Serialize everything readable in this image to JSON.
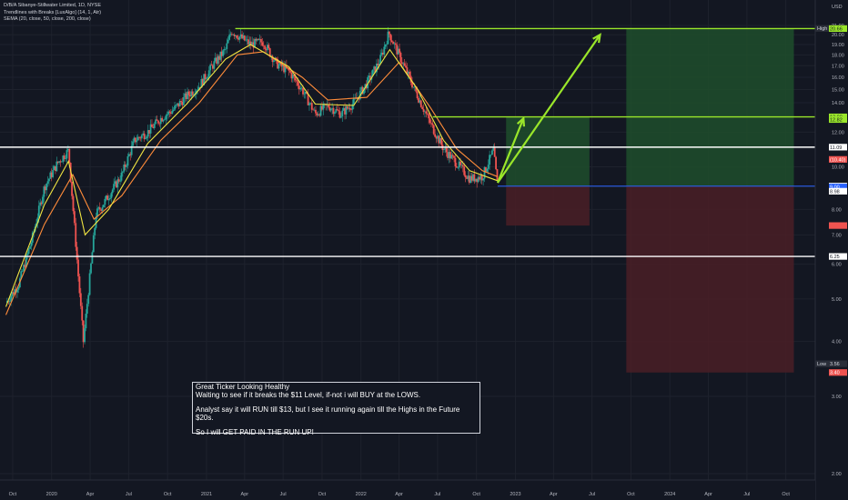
{
  "header": {
    "title_line": "D/B/A Sibanye-Stillwater Limited, 1D, NYSE",
    "indicator_1": "Trendlines with Breaks [LuxAlgo] (14, 1, Atr)",
    "indicator_2": "SEMA (20, close, 50, close, 200, close)"
  },
  "note": {
    "line1": "Great Ticker Looking Healthy",
    "line2": "Waiting to see if it breaks the $11 Level, if-not i will BUY at the LOWS.",
    "line3": "Analyst say it will RUN till $13, but I see it running again till the Highs in the Future $20s.",
    "line4": "So I will GET PAID IN THE RUN UP!"
  },
  "colors": {
    "background": "#131722",
    "candle_up": "#26a69a",
    "candle_down": "#ef5350",
    "ema_fast": "#f0e442",
    "ema_mid": "#ff8c3a",
    "level_white": "#ffffff",
    "level_green": "#9ae62a",
    "entry_blue": "#2962ff",
    "profit_zone": "#1e4d2b",
    "loss_zone": "#4a1f26"
  },
  "chart_data": {
    "type": "line",
    "title": "D/B/A Sibanye-Stillwater Limited, 1D, NYSE",
    "currency": "USD",
    "y_scale": "log",
    "ylim": [
      1.8,
      22.5
    ],
    "y_ticks": [
      "21.00",
      "20.00",
      "19.00",
      "18.00",
      "17.00",
      "16.00",
      "15.00",
      "14.00",
      "13.00",
      "12.00",
      "11.00",
      "10.00",
      "9.00",
      "8.00",
      "7.00",
      "6.00",
      "5.00",
      "4.00",
      "3.00",
      "2.00"
    ],
    "x_ticks": [
      "Oct",
      "2020",
      "Apr",
      "Jul",
      "Oct",
      "2021",
      "Apr",
      "Jul",
      "Oct",
      "2022",
      "Apr",
      "Jul",
      "Oct",
      "2023",
      "Apr",
      "Jul",
      "Oct",
      "2024",
      "Apr",
      "Jul",
      "Oct"
    ],
    "price_series": {
      "name": "Close",
      "points": [
        [
          "2019-09-15",
          4.9
        ],
        [
          "2019-10-15",
          5.4
        ],
        [
          "2019-11-15",
          6.8
        ],
        [
          "2019-12-15",
          9.0
        ],
        [
          "2020-01-15",
          10.2
        ],
        [
          "2020-02-10",
          10.9
        ],
        [
          "2020-03-16",
          4.0
        ],
        [
          "2020-04-15",
          7.8
        ],
        [
          "2020-05-15",
          8.6
        ],
        [
          "2020-06-15",
          9.6
        ],
        [
          "2020-07-15",
          11.5
        ],
        [
          "2020-08-15",
          12.0
        ],
        [
          "2020-09-15",
          12.9
        ],
        [
          "2020-10-15",
          13.5
        ],
        [
          "2020-11-15",
          14.5
        ],
        [
          "2020-12-15",
          15.3
        ],
        [
          "2021-01-15",
          17.0
        ],
        [
          "2021-02-15",
          18.5
        ],
        [
          "2021-03-01",
          20.4
        ],
        [
          "2021-04-15",
          19.0
        ],
        [
          "2021-05-15",
          19.3
        ],
        [
          "2021-06-15",
          17.2
        ],
        [
          "2021-07-15",
          16.5
        ],
        [
          "2021-08-15",
          15.0
        ],
        [
          "2021-09-15",
          13.2
        ],
        [
          "2021-10-15",
          13.8
        ],
        [
          "2021-11-15",
          13.2
        ],
        [
          "2021-12-15",
          14.0
        ],
        [
          "2022-01-15",
          15.5
        ],
        [
          "2022-02-15",
          17.5
        ],
        [
          "2022-03-08",
          20.2
        ],
        [
          "2022-04-10",
          17.2
        ],
        [
          "2022-05-15",
          14.5
        ],
        [
          "2022-06-15",
          12.5
        ],
        [
          "2022-07-15",
          11.0
        ],
        [
          "2022-08-15",
          10.2
        ],
        [
          "2022-09-15",
          9.4
        ],
        [
          "2022-10-15",
          9.5
        ],
        [
          "2022-11-10",
          10.9
        ],
        [
          "2022-11-20",
          9.0
        ]
      ]
    },
    "ema_20": [
      [
        "2019-09-15",
        4.8
      ],
      [
        "2019-12-15",
        8.2
      ],
      [
        "2020-02-10",
        10.3
      ],
      [
        "2020-03-20",
        7.0
      ],
      [
        "2020-05-15",
        8.0
      ],
      [
        "2020-08-15",
        11.3
      ],
      [
        "2020-11-15",
        13.9
      ],
      [
        "2021-02-15",
        17.6
      ],
      [
        "2021-04-15",
        19.0
      ],
      [
        "2021-07-15",
        16.9
      ],
      [
        "2021-09-15",
        13.9
      ],
      [
        "2021-12-15",
        13.8
      ],
      [
        "2022-03-10",
        18.5
      ],
      [
        "2022-05-15",
        15.0
      ],
      [
        "2022-07-15",
        11.5
      ],
      [
        "2022-09-15",
        9.8
      ],
      [
        "2022-11-20",
        9.3
      ]
    ],
    "ema_50": [
      [
        "2019-09-15",
        4.6
      ],
      [
        "2019-12-15",
        7.4
      ],
      [
        "2020-02-20",
        9.6
      ],
      [
        "2020-04-10",
        7.6
      ],
      [
        "2020-06-15",
        8.6
      ],
      [
        "2020-09-15",
        11.5
      ],
      [
        "2020-12-15",
        14.0
      ],
      [
        "2021-03-15",
        18.0
      ],
      [
        "2021-05-15",
        18.3
      ],
      [
        "2021-08-15",
        16.0
      ],
      [
        "2021-10-15",
        14.2
      ],
      [
        "2022-01-15",
        14.4
      ],
      [
        "2022-04-01",
        17.3
      ],
      [
        "2022-06-15",
        13.6
      ],
      [
        "2022-08-15",
        11.0
      ],
      [
        "2022-10-15",
        9.8
      ],
      [
        "2022-11-20",
        9.5
      ]
    ],
    "horizontal_levels": [
      {
        "price": 20.66,
        "label": "20.66",
        "color": "green"
      },
      {
        "price": 13.0,
        "label": "13.00",
        "color": "green"
      },
      {
        "price": 11.09,
        "label": "11.09",
        "color": "white"
      },
      {
        "price": 9.04,
        "label": "9.04",
        "color": "blue"
      },
      {
        "price": 6.25,
        "label": "6.25",
        "color": "white"
      }
    ],
    "price_scale_tags": [
      {
        "price": 20.68,
        "label": "20.68",
        "kind": "high"
      },
      {
        "price": 20.66,
        "label": "20.66",
        "kind": "green"
      },
      {
        "price": 13.0,
        "label": "13.00",
        "kind": "green"
      },
      {
        "price": 12.82,
        "label": "12.82",
        "kind": "green"
      },
      {
        "price": 11.09,
        "label": "11.09",
        "kind": "white"
      },
      {
        "price": 10.4,
        "label": "(10.40)",
        "kind": "red"
      },
      {
        "price": 9.04,
        "label": "9.04",
        "kind": "white"
      },
      {
        "price": 9.0,
        "label": "9.00",
        "kind": "blue"
      },
      {
        "price": 8.8,
        "label": "8.98",
        "kind": "white"
      },
      {
        "price": 7.35,
        "label": "",
        "kind": "red"
      },
      {
        "price": 6.25,
        "label": "6.25",
        "kind": "white"
      },
      {
        "price": 3.56,
        "label": "3.56",
        "kind": "low"
      },
      {
        "price": 3.4,
        "label": "3.40",
        "kind": "red"
      }
    ],
    "high_label": "High",
    "low_label": "Low",
    "positions": [
      {
        "start": "2022-12-10",
        "end": "2023-06-25",
        "entry": 9.04,
        "target": 13.0,
        "stop": 7.35
      },
      {
        "start": "2023-09-20",
        "end": "2024-10-20",
        "entry": 9.04,
        "target": 20.66,
        "stop": 3.4
      }
    ],
    "projection_arrows": [
      {
        "from": [
          "2022-11-20",
          9.2
        ],
        "to": [
          "2023-01-20",
          12.9
        ]
      },
      {
        "from": [
          "2022-11-20",
          9.2
        ],
        "to": [
          "2023-07-20",
          20.0
        ]
      }
    ]
  }
}
